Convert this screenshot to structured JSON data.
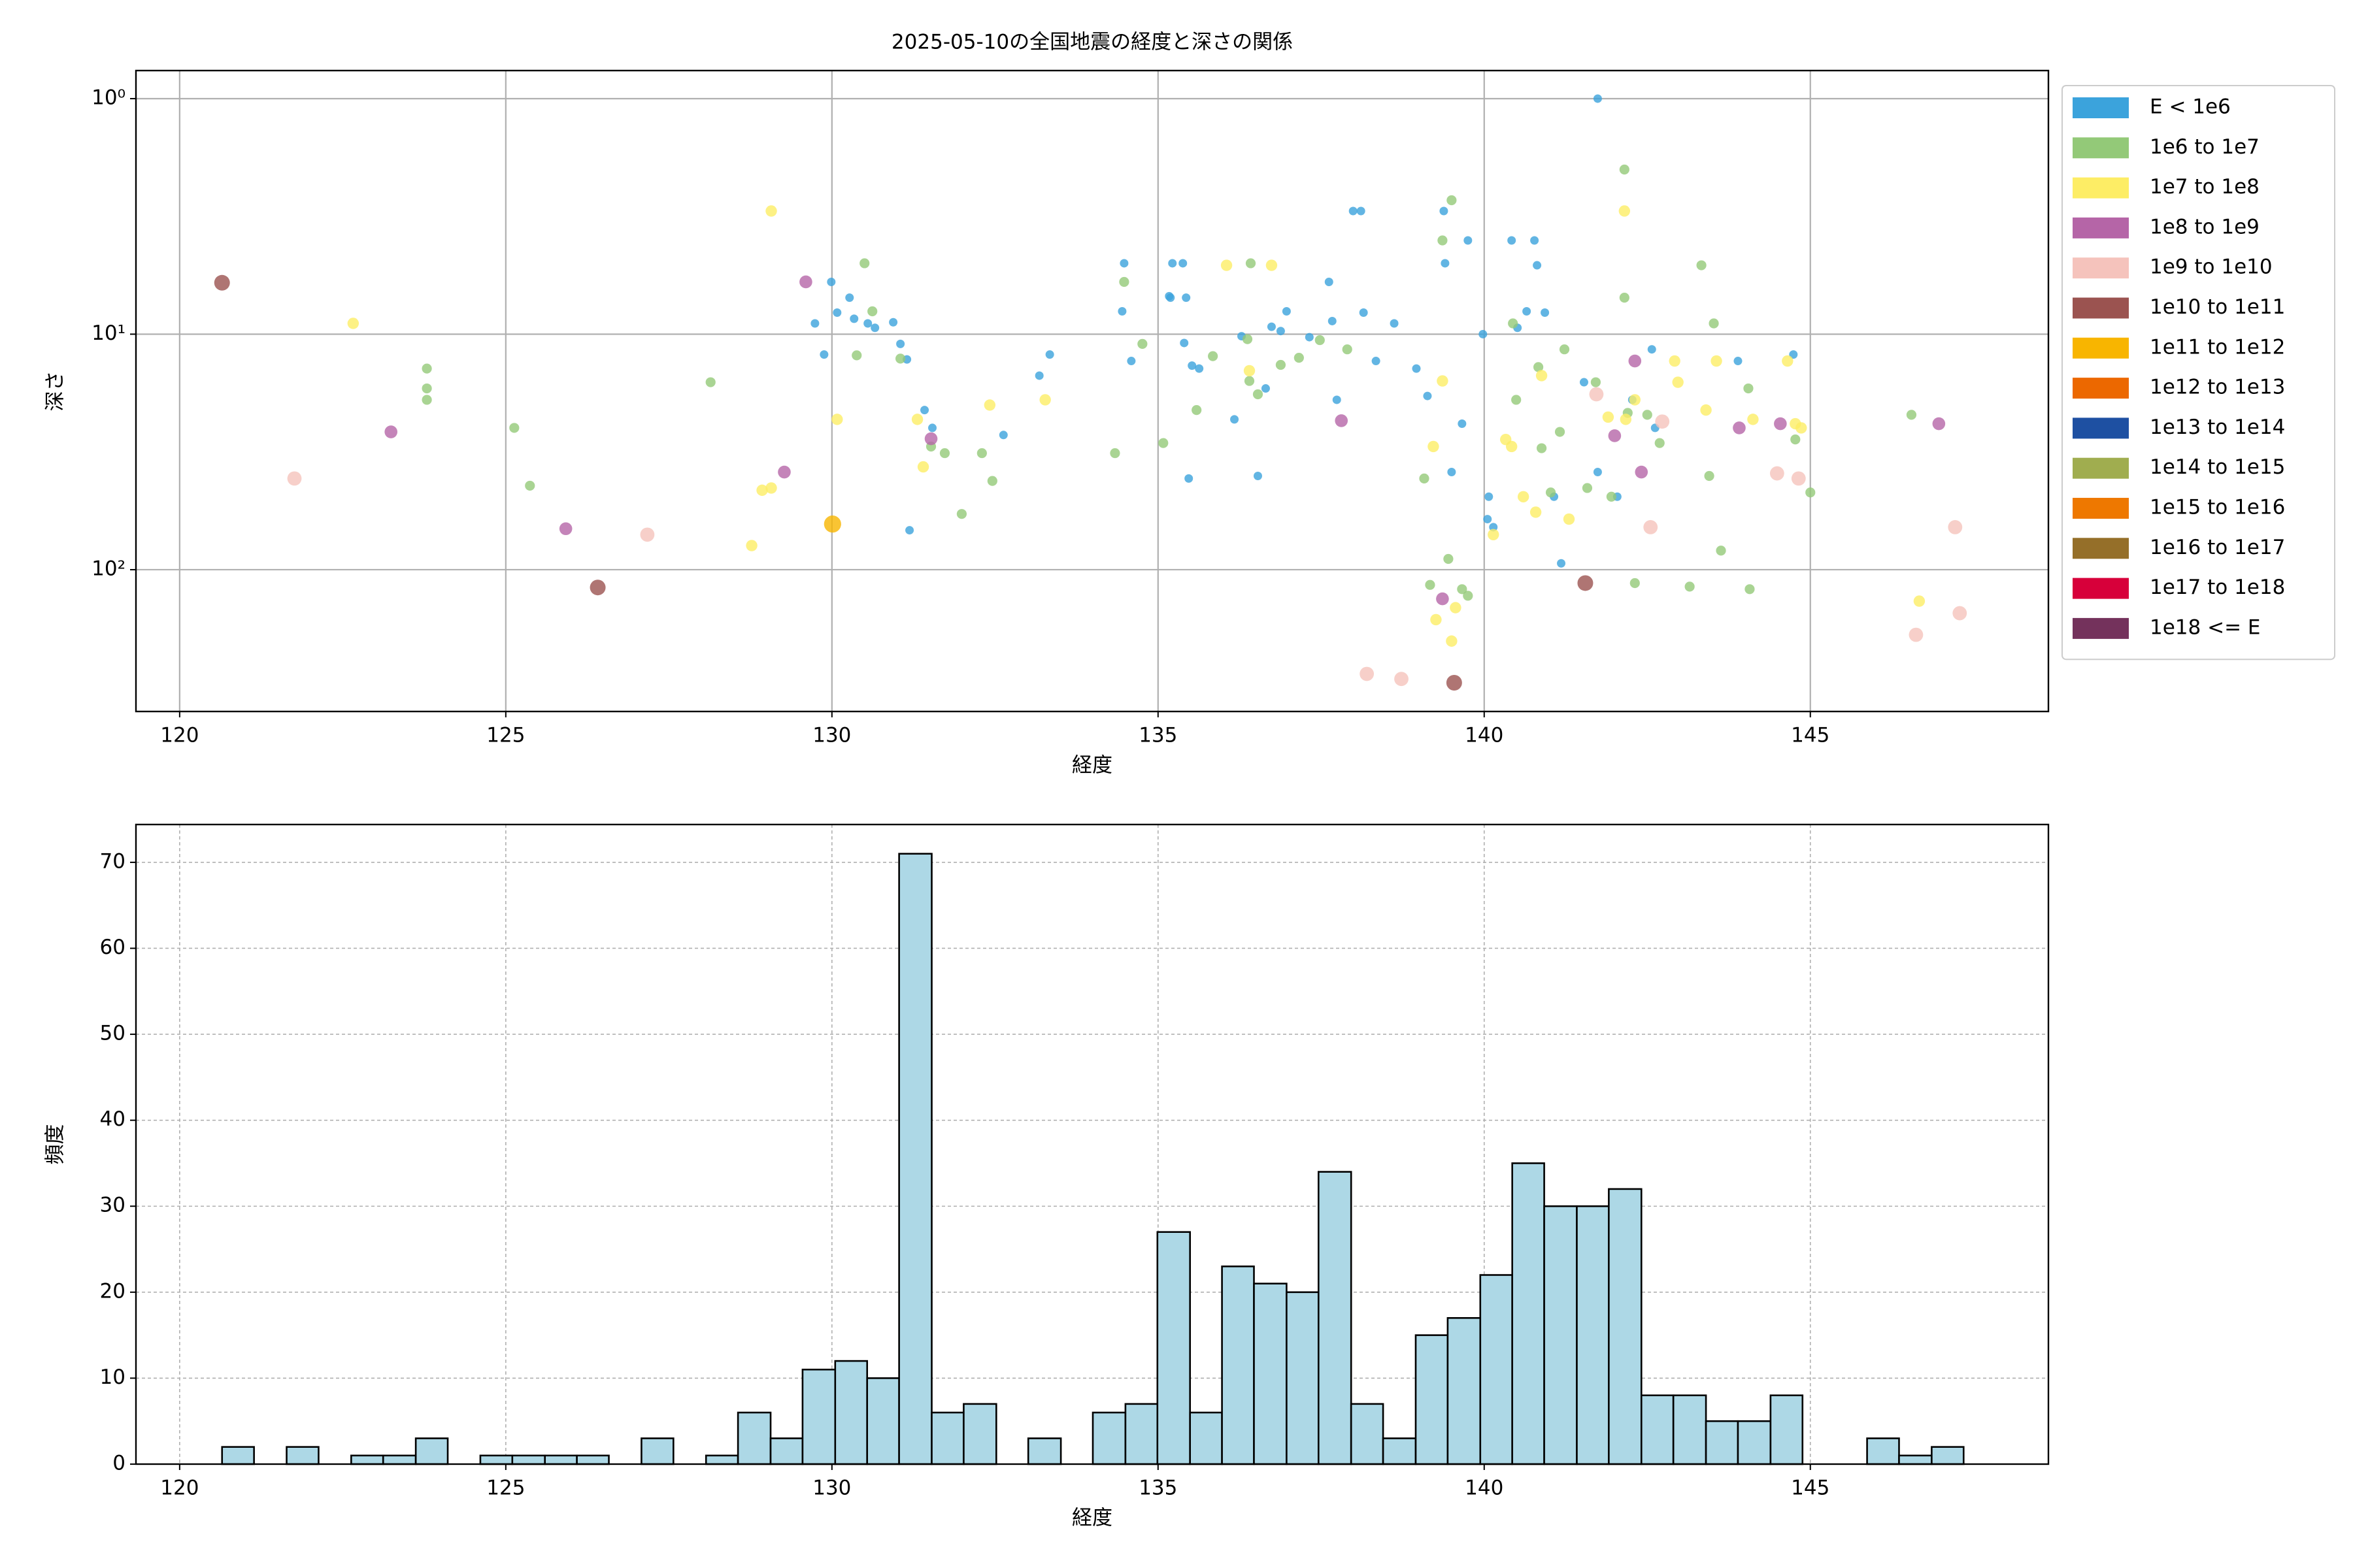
{
  "chart_data": [
    {
      "type": "scatter",
      "title": "2025-05-10の全国地震の経度と深さの関係",
      "xlabel": "経度",
      "ylabel": "深さ",
      "yscale": "log",
      "xlim": [
        119.33,
        148.65
      ],
      "ylim": [
        400,
        0.76
      ],
      "xticks": [
        120,
        125,
        130,
        135,
        140,
        145
      ],
      "yticks": [
        {
          "value": 1,
          "label": "10⁰"
        },
        {
          "value": 10,
          "label": "10¹"
        },
        {
          "value": 100,
          "label": "10²"
        }
      ],
      "grid": true,
      "legend": "outside upper right",
      "series": [
        {
          "name": "E < 1e6",
          "color": "#3ba3dc",
          "x": [
            129.74,
            129.88,
            129.99,
            130.08,
            130.27,
            130.34,
            130.55,
            130.66,
            130.94,
            131.05,
            131.15,
            131.19,
            131.42,
            131.54,
            132.63,
            133.18,
            133.34,
            134.45,
            134.48,
            134.59,
            135.17,
            135.22,
            135.19,
            135.38,
            135.43,
            135.47,
            135.4,
            135.52,
            135.63,
            136.17,
            136.28,
            136.53,
            136.65,
            136.74,
            136.88,
            136.97,
            137.32,
            137.62,
            137.67,
            137.74,
            137.99,
            138.11,
            138.15,
            138.34,
            138.62,
            138.96,
            139.13,
            139.38,
            139.4,
            139.5,
            139.66,
            139.75,
            139.98,
            140.07,
            140.14,
            140.05,
            140.42,
            140.51,
            140.65,
            140.77,
            140.81,
            140.93,
            141.07,
            141.18,
            141.53,
            141.74,
            142.04,
            142.27,
            142.57,
            142.62,
            143.89,
            144.74,
            141.74
          ],
          "y": [
            9.0,
            12.2,
            6,
            8.1,
            7.0,
            8.6,
            9,
            9.4,
            8.9,
            11,
            12.8,
            68,
            21,
            25,
            26.8,
            15,
            12.2,
            8.0,
            5.0,
            13,
            6.9,
            5.0,
            7.0,
            5,
            7,
            41,
            10.9,
            13.6,
            14,
            23,
            10.2,
            40,
            17,
            9.3,
            9.7,
            8.0,
            10.3,
            6,
            8.8,
            19,
            3.0,
            3.0,
            8.1,
            13,
            9.0,
            14,
            18.3,
            3.0,
            5.0,
            38.5,
            24,
            4.0,
            10,
            49,
            66,
            61,
            4.0,
            9.4,
            8.0,
            4.0,
            5.1,
            8.1,
            49,
            94,
            16,
            1.0,
            49,
            19,
            11.6,
            25,
            13,
            12.2,
            38.5
          ]
        },
        {
          "name": "1e6 to 1e7",
          "color": "#93c978",
          "x": [
            123.79,
            123.79,
            123.79,
            125.13,
            125.37,
            128.14,
            130.5,
            130.62,
            130.38,
            131.05,
            131.52,
            131.73,
            131.99,
            132.3,
            132.46,
            134.34,
            134.48,
            134.76,
            135.08,
            135.59,
            135.84,
            136.37,
            136.4,
            136.42,
            136.53,
            136.88,
            137.16,
            137.48,
            137.9,
            139.36,
            139.5,
            139.08,
            139.17,
            139.45,
            139.66,
            139.75,
            140.44,
            140.49,
            140.83,
            140.88,
            141.02,
            141.23,
            141.58,
            141.71,
            141.95,
            142.15,
            142.15,
            142.2,
            142.31,
            142.5,
            142.69,
            143.15,
            143.33,
            143.52,
            143.63,
            144.05,
            144.07,
            144.77,
            145.0,
            146.55,
            143.45,
            141.16
          ],
          "y": [
            14,
            17,
            19,
            25,
            44,
            16,
            5.0,
            8.0,
            12.3,
            12.7,
            30,
            32,
            58,
            32,
            42,
            32,
            6,
            11,
            29,
            21,
            12.4,
            10.5,
            15.8,
            5.0,
            18,
            13.5,
            12.6,
            10.6,
            11.6,
            4.0,
            2.7,
            41,
            116,
            90,
            121,
            129,
            9.0,
            19,
            13.8,
            30.5,
            47,
            11.6,
            45,
            16,
            49,
            2.0,
            7.0,
            21.6,
            114,
            22,
            29,
            118,
            5.1,
            9.0,
            83,
            17,
            121,
            28,
            47,
            22,
            40,
            26
          ]
        },
        {
          "name": "1e7 to 1e8",
          "color": "#fded65",
          "x": [
            122.66,
            129.07,
            128.77,
            128.93,
            129.07,
            130.08,
            131.31,
            131.4,
            132.42,
            133.27,
            136.05,
            136.74,
            136.4,
            139.22,
            139.36,
            139.26,
            139.5,
            139.56,
            140.33,
            140.42,
            140.6,
            140.88,
            141.3,
            142.15,
            142.17,
            142.31,
            142.92,
            142.97,
            143.4,
            143.56,
            144.12,
            144.65,
            144.77,
            144.86,
            146.67,
            140.79,
            140.14,
            141.9
          ],
          "y": [
            9.0,
            3.0,
            79,
            46,
            45,
            23,
            23,
            36.6,
            20,
            19,
            5.1,
            5.1,
            14.3,
            30,
            15.8,
            163,
            201,
            145,
            28,
            30,
            49,
            15,
            61,
            3.0,
            23,
            19,
            13,
            16,
            21,
            13,
            23,
            13,
            24,
            25,
            136,
            57,
            71,
            22.5
          ]
        },
        {
          "name": "1e8 to 1e9",
          "color": "#b565a7",
          "x": [
            123.24,
            125.92,
            129.27,
            129.6,
            131.52,
            137.81,
            139.36,
            142.0,
            142.31,
            142.41,
            143.91,
            144.54,
            146.97
          ],
          "y": [
            26,
            67,
            38.5,
            6,
            27.8,
            23.3,
            133,
            27,
            13,
            38.5,
            25,
            24,
            24
          ]
        },
        {
          "name": "1e9 to 1e10",
          "color": "#f5c3bc",
          "x": [
            121.76,
            127.17,
            138.2,
            138.73,
            141.72,
            142.55,
            142.73,
            144.49,
            144.82,
            146.62,
            147.22,
            147.29
          ],
          "y": [
            41,
            71,
            277,
            291,
            18,
            66,
            23.5,
            39,
            41,
            189,
            66,
            153
          ]
        },
        {
          "name": "1e10 to 1e11",
          "color": "#9b5350",
          "x": [
            120.65,
            126.41,
            141.55,
            139.54
          ],
          "y": [
            6.05,
            119,
            114,
            302
          ]
        },
        {
          "name": "1e11 to 1e12",
          "color": "#f8b500",
          "x": [
            130.01
          ],
          "y": [
            64
          ]
        },
        {
          "name": "1e12 to 1e13",
          "color": "#ec6800",
          "x": [],
          "y": []
        },
        {
          "name": "1e13 to 1e14",
          "color": "#1e50a2",
          "x": [],
          "y": []
        },
        {
          "name": "1e14 to 1e15",
          "color": "#a0ad4f",
          "x": [],
          "y": []
        },
        {
          "name": "1e15 to 1e16",
          "color": "#ee7800",
          "x": [],
          "y": []
        },
        {
          "name": "1e16 to 1e17",
          "color": "#956f29",
          "x": [],
          "y": []
        },
        {
          "name": "1e17 to 1e18",
          "color": "#d7003a",
          "x": [],
          "y": []
        },
        {
          "name": "1e18 <= E",
          "color": "#74325c",
          "x": [],
          "y": []
        }
      ]
    },
    {
      "type": "histogram",
      "xlabel": "経度",
      "ylabel": "頻度",
      "color": "#add8e6",
      "edgecolor": "#000000",
      "xlim": [
        119.33,
        148.65
      ],
      "ylim": [
        0,
        74.4
      ],
      "xticks": [
        120,
        125,
        130,
        135,
        140,
        145
      ],
      "yticks": [
        0,
        10,
        20,
        30,
        40,
        50,
        60,
        70
      ],
      "grid": true,
      "bins": [
        120.65,
        121.14,
        121.64,
        122.13,
        122.63,
        123.12,
        123.62,
        124.11,
        124.61,
        125.1,
        125.6,
        126.09,
        126.58,
        127.08,
        127.57,
        128.07,
        128.56,
        129.06,
        129.55,
        130.05,
        130.54,
        131.03,
        131.53,
        132.02,
        132.52,
        133.01,
        133.51,
        134.0,
        134.5,
        134.99,
        135.49,
        135.98,
        136.47,
        136.97,
        137.46,
        137.96,
        138.45,
        138.95,
        139.44,
        139.94,
        140.43,
        140.92,
        141.42,
        141.91,
        142.41,
        142.9,
        143.4,
        143.89,
        144.39,
        144.88,
        145.38,
        145.87,
        146.36,
        146.86,
        147.35
      ],
      "values": [
        2,
        0,
        2,
        0,
        1,
        1,
        3,
        0,
        1,
        1,
        1,
        1,
        0,
        3,
        0,
        1,
        6,
        3,
        11,
        12,
        10,
        71,
        6,
        7,
        0,
        3,
        0,
        6,
        7,
        27,
        6,
        23,
        21,
        20,
        34,
        7,
        3,
        15,
        17,
        22,
        35,
        30,
        30,
        32,
        8,
        8,
        5,
        5,
        8,
        0,
        0,
        3,
        1,
        2
      ]
    }
  ]
}
